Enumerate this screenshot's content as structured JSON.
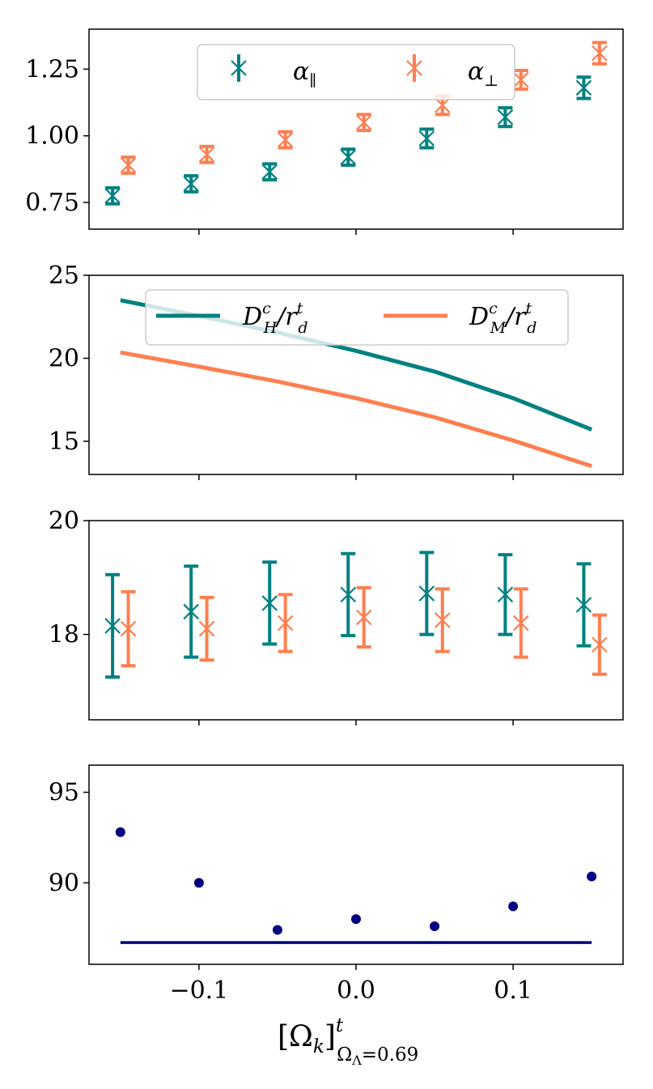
{
  "colors": {
    "teal": "#008080",
    "coral": "#ff7f50",
    "navy": "#000080",
    "axis": "#000000"
  },
  "chart_data": [
    {
      "type": "scatter",
      "panel": 1,
      "x": [
        -0.15,
        -0.1,
        -0.05,
        0.0,
        0.05,
        0.1,
        0.15
      ],
      "ylim": [
        0.65,
        1.4
      ],
      "yticks": [
        0.75,
        1.0,
        1.25
      ],
      "ytick_labels": [
        "0.75",
        "1.00",
        "1.25"
      ],
      "xticks": [
        -0.1,
        0.0,
        0.1
      ],
      "legend_position": "top-center",
      "series": [
        {
          "name": "α_∥",
          "legend_base": "α",
          "legend_sub": "∥",
          "color": "teal",
          "x_offset": -0.005,
          "y": [
            0.775,
            0.82,
            0.865,
            0.92,
            0.99,
            1.07,
            1.18
          ],
          "yerr": [
            0.03,
            0.03,
            0.03,
            0.03,
            0.035,
            0.035,
            0.04
          ]
        },
        {
          "name": "α_⊥",
          "legend_base": "α",
          "legend_sub": "⊥",
          "color": "coral",
          "x_offset": 0.005,
          "y": [
            0.89,
            0.93,
            0.985,
            1.05,
            1.115,
            1.21,
            1.31
          ],
          "yerr": [
            0.03,
            0.03,
            0.03,
            0.03,
            0.035,
            0.035,
            0.04
          ]
        }
      ]
    },
    {
      "type": "line",
      "panel": 2,
      "x": [
        -0.15,
        -0.1,
        -0.05,
        0.0,
        0.05,
        0.1,
        0.15
      ],
      "ylim": [
        13,
        25
      ],
      "yticks": [
        15,
        20,
        25
      ],
      "ytick_labels": [
        "15",
        "20",
        "25"
      ],
      "xticks": [
        -0.1,
        0.0,
        0.1
      ],
      "legend_position": "top-center",
      "series": [
        {
          "name": "D_H^c/r_d^t",
          "legend_sub": "H",
          "color": "teal",
          "y": [
            23.5,
            22.55,
            21.55,
            20.45,
            19.2,
            17.6,
            15.7
          ]
        },
        {
          "name": "D_M^c/r_d^t",
          "legend_sub": "M",
          "color": "coral",
          "y": [
            20.35,
            19.5,
            18.6,
            17.6,
            16.45,
            15.05,
            13.5
          ]
        }
      ]
    },
    {
      "type": "scatter",
      "panel": 3,
      "x": [
        -0.15,
        -0.1,
        -0.05,
        0.0,
        0.05,
        0.1,
        0.15
      ],
      "ylim": [
        16.5,
        20
      ],
      "yticks": [
        18,
        20
      ],
      "ytick_labels": [
        "18",
        "20"
      ],
      "xticks": [
        -0.1,
        0.0,
        0.1
      ],
      "series": [
        {
          "name": "teal",
          "color": "teal",
          "x_offset": -0.005,
          "y": [
            18.15,
            18.4,
            18.55,
            18.7,
            18.72,
            18.7,
            18.52
          ],
          "yerr": [
            0.9,
            0.8,
            0.72,
            0.72,
            0.72,
            0.7,
            0.72
          ]
        },
        {
          "name": "coral",
          "color": "coral",
          "x_offset": 0.005,
          "y": [
            18.1,
            18.1,
            18.2,
            18.3,
            18.25,
            18.2,
            17.82
          ],
          "yerr": [
            0.65,
            0.55,
            0.5,
            0.52,
            0.55,
            0.6,
            0.52
          ]
        }
      ]
    },
    {
      "type": "scatter",
      "panel": 4,
      "x": [
        -0.15,
        -0.1,
        -0.05,
        0.0,
        0.05,
        0.1,
        0.15
      ],
      "ylim": [
        85.5,
        96.5
      ],
      "yticks": [
        90,
        95
      ],
      "ytick_labels": [
        "90",
        "95"
      ],
      "xticks": [
        -0.1,
        0.0,
        0.1
      ],
      "xtick_labels": [
        "−0.1",
        "0.0",
        "0.1"
      ],
      "series": [
        {
          "name": "points",
          "color": "navy",
          "y": [
            92.8,
            90.0,
            87.4,
            88.0,
            87.6,
            88.7,
            90.35
          ]
        }
      ],
      "hline": {
        "y": 86.7,
        "x_range": [
          -0.15,
          0.15
        ],
        "color": "navy"
      }
    }
  ],
  "xlabel": {
    "base": "[Ω",
    "base_sub": "k",
    "close": "]",
    "sup": "t",
    "sub": "Ω",
    "sub_sub": "Λ",
    "sub_tail": "=0.69"
  }
}
